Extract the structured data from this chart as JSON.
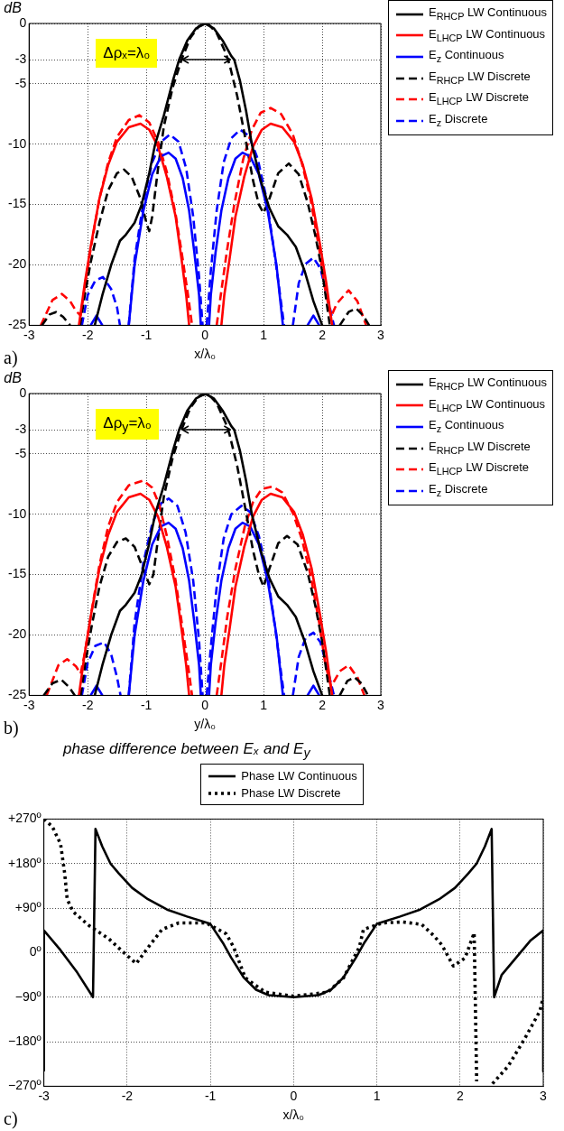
{
  "chart_data": [
    {
      "type": "line",
      "ylabel": "dB",
      "xlabel": "x/λ₀",
      "xlim": [
        -3,
        3
      ],
      "xticks": [
        -3,
        -2,
        -1,
        0,
        1,
        2,
        3
      ],
      "ylim": [
        -25,
        0
      ],
      "yticks": [
        -25,
        -20,
        -15,
        -10,
        -5,
        -3,
        0
      ],
      "grid": true,
      "legend": "top right",
      "annotations": [
        "Δρₓ=λ₀",
        "a)"
      ],
      "series": [
        {
          "name": "E$_{RHCP}$ LW Continuous",
          "color": "#000000",
          "line_style": "solid",
          "x": [
            -1.88,
            -1.75,
            -1.6,
            -1.45,
            -1.35,
            -1.2,
            -1.08,
            -0.95,
            -0.85,
            -0.7,
            -0.55,
            -0.44,
            -0.3,
            -0.15,
            0,
            0.15,
            0.3,
            0.45,
            0.5,
            0.6,
            0.7,
            0.8,
            0.95,
            1.1,
            1.25,
            1.4,
            1.55,
            1.7,
            1.85,
            2.0
          ],
          "values": [
            -25,
            -22.5,
            -20,
            -18,
            -17.5,
            -16.5,
            -15,
            -12.4,
            -10,
            -7.6,
            -4.8,
            -3,
            -1.4,
            -0.4,
            0,
            -0.4,
            -1.4,
            -2.7,
            -3,
            -4.8,
            -7.2,
            -10,
            -13,
            -15.3,
            -16.8,
            -17.5,
            -18.5,
            -20.5,
            -23,
            -25
          ]
        },
        {
          "name": "E$_{LHCP}$ LW Continuous",
          "color": "#ff0000",
          "line_style": "solid",
          "x": [
            -2.15,
            -2.05,
            -1.95,
            -1.8,
            -1.65,
            -1.5,
            -1.3,
            -1.1,
            -0.95,
            -0.8,
            -0.65,
            -0.5,
            -0.4,
            -0.32,
            -0.27,
            0,
            0.28,
            0.33,
            0.42,
            0.52,
            0.67,
            0.82,
            0.97,
            1.12,
            1.32,
            1.52,
            1.67,
            1.82,
            1.97,
            2.07,
            2.17
          ],
          "values": [
            -25,
            -21.5,
            -18.5,
            -14.5,
            -11.7,
            -9.8,
            -8.6,
            -8.3,
            -8.8,
            -10.2,
            -12.7,
            -16,
            -19.5,
            -22.5,
            -25,
            null,
            -25,
            -22.5,
            -19.5,
            -16,
            -12.7,
            -10.2,
            -8.8,
            -8.3,
            -8.6,
            -9.8,
            -11.7,
            -14.5,
            -18.5,
            -21.5,
            -25
          ]
        },
        {
          "name": "E$_{z}$ Continuous",
          "color": "#0000ff",
          "line_style": "solid",
          "x": [
            -1.95,
            -1.85,
            -1.75,
            -1.5,
            -1.3,
            -1.2,
            -1.05,
            -0.9,
            -0.75,
            -0.62,
            -0.5,
            -0.38,
            -0.27,
            -0.18,
            -0.1,
            -0.07,
            0,
            0.07,
            0.1,
            0.18,
            0.28,
            0.4,
            0.52,
            0.64,
            0.77,
            0.92,
            1.07,
            1.22,
            1.33,
            1.55,
            1.75,
            1.85,
            1.95
          ],
          "values": [
            -25,
            -24.2,
            -25,
            null,
            -25,
            -20,
            -15.5,
            -12.5,
            -11,
            -10.7,
            -11.2,
            -12.8,
            -15.5,
            -19,
            -22.5,
            -25,
            null,
            -25,
            -22.5,
            -19,
            -15.5,
            -12.8,
            -11.2,
            -10.7,
            -11,
            -12.5,
            -15.5,
            -20,
            -25,
            null,
            -25,
            -24.2,
            -25
          ]
        },
        {
          "name": "E$_{RHCP}$ LW Discrete",
          "color": "#000000",
          "line_style": "dashed",
          "x": [
            -2.78,
            -2.65,
            -2.54,
            -2.42,
            -2.3,
            -2.2,
            -2.13,
            -2.05,
            -1.95,
            -1.8,
            -1.65,
            -1.5,
            -1.38,
            -1.25,
            -1.1,
            -1.0,
            -0.95,
            -0.9,
            -0.8,
            -0.7,
            -0.55,
            -0.4,
            -0.25,
            -0.1,
            0.05,
            0.2,
            0.35,
            0.42,
            0.55,
            0.7,
            0.82,
            0.92,
            1.0,
            1.1,
            1.25,
            1.43,
            1.6,
            1.75,
            1.88,
            2.0,
            2.13,
            2.2,
            2.3,
            2.45,
            2.58,
            2.7,
            2.8
          ],
          "values": [
            -25,
            -24.1,
            -23.9,
            -24.3,
            -25,
            null,
            -25,
            -22.5,
            -19.8,
            -16.5,
            -13.8,
            -12.4,
            -12.1,
            -12.7,
            -14.5,
            -16.5,
            -17.2,
            -16,
            -12,
            -8.5,
            -5.3,
            -3,
            -1.2,
            -0.2,
            0,
            -0.8,
            -2.4,
            -3.4,
            -6,
            -9.8,
            -13,
            -15,
            -15.7,
            -14.5,
            -12.4,
            -11.6,
            -12.5,
            -14.8,
            -17.5,
            -20.5,
            -25,
            null,
            -25,
            -23.9,
            -23.6,
            -24.2,
            -25
          ]
        },
        {
          "name": "E$_{LHCP}$ LW Discrete",
          "color": "#ff0000",
          "line_style": "dashed",
          "x": [
            -2.8,
            -2.6,
            -2.44,
            -2.3,
            -2.2,
            -2.12,
            -2.05,
            -1.95,
            -1.8,
            -1.65,
            -1.5,
            -1.3,
            -1.12,
            -0.95,
            -0.8,
            -0.65,
            -0.5,
            -0.38,
            -0.28,
            -0.22,
            0,
            0.2,
            0.27,
            0.37,
            0.5,
            0.65,
            0.8,
            0.95,
            1.12,
            1.3,
            1.5,
            1.65,
            1.8,
            1.95,
            2.05,
            2.15,
            2.25,
            2.45,
            2.6,
            2.75
          ],
          "values": [
            -25,
            -22.9,
            -22.4,
            -23,
            -23.8,
            -24.2,
            -21.8,
            -18.7,
            -14.5,
            -11.5,
            -9.4,
            -8,
            -7.6,
            -8.2,
            -9.8,
            -12.3,
            -15.8,
            -19.5,
            -22.8,
            -25,
            null,
            -25,
            -22.5,
            -19,
            -15,
            -11.3,
            -8.8,
            -7.4,
            -7,
            -7.5,
            -9.2,
            -11.5,
            -14.5,
            -18.7,
            -22,
            -24.3,
            -23.2,
            -22.1,
            -23,
            -25
          ]
        },
        {
          "name": "E$_{z}$ Discrete",
          "color": "#0000ff",
          "line_style": "dashed",
          "x": [
            -2.1,
            -2.0,
            -1.87,
            -1.74,
            -1.6,
            -1.5,
            -1.45,
            -1.37,
            -1.3,
            -1.2,
            -1.05,
            -0.9,
            -0.75,
            -0.6,
            -0.45,
            -0.32,
            -0.2,
            -0.1,
            -0.04,
            0,
            0.03,
            0.1,
            0.2,
            0.32,
            0.45,
            0.6,
            0.75,
            0.9,
            1.05,
            1.2,
            1.35,
            1.42,
            1.5,
            1.6,
            1.72,
            1.85,
            1.97,
            2.08,
            2.2
          ],
          "values": [
            -25,
            -22.5,
            -21.3,
            -21,
            -22,
            -23.5,
            -25,
            null,
            -25,
            -19.5,
            -14.8,
            -11.5,
            -9.8,
            -9.2,
            -9.8,
            -12,
            -16,
            -21,
            -25,
            null,
            -25,
            -20.5,
            -15.5,
            -11.5,
            -9.5,
            -8.8,
            -9.3,
            -11.2,
            -14.5,
            -19.5,
            -25,
            null,
            -25,
            -21.5,
            -19.9,
            -19.4,
            -20.3,
            -22.5,
            -25
          ]
        }
      ]
    },
    {
      "type": "line",
      "ylabel": "dB",
      "xlabel": "y/λ₀",
      "xlim": [
        -3,
        3
      ],
      "xticks": [
        -3,
        -2,
        -1,
        0,
        1,
        2,
        3
      ],
      "ylim": [
        -25,
        0
      ],
      "yticks": [
        -25,
        -20,
        -15,
        -10,
        -5,
        -3,
        0
      ],
      "grid": true,
      "legend": "top right",
      "annotations": [
        "Δρ$_{y}$=λ₀",
        "b)"
      ],
      "series": [
        {
          "name": "E$_{RHCP}$ LW Continuous",
          "color": "#000000",
          "line_style": "solid",
          "x": [
            -1.88,
            -1.75,
            -1.6,
            -1.45,
            -1.35,
            -1.2,
            -1.08,
            -0.95,
            -0.85,
            -0.7,
            -0.55,
            -0.44,
            -0.3,
            -0.15,
            0,
            0.15,
            0.3,
            0.45,
            0.5,
            0.6,
            0.7,
            0.8,
            0.95,
            1.1,
            1.25,
            1.4,
            1.55,
            1.7,
            1.85,
            2.0
          ],
          "values": [
            -25,
            -22.5,
            -20,
            -18,
            -17.5,
            -16.5,
            -15,
            -12.4,
            -10,
            -7.6,
            -4.8,
            -3,
            -1.4,
            -0.4,
            0,
            -0.4,
            -1.4,
            -2.7,
            -3,
            -4.8,
            -7.2,
            -10,
            -13,
            -15.3,
            -16.8,
            -17.5,
            -18.5,
            -20.5,
            -23,
            -25
          ]
        },
        {
          "name": "E$_{LHCP}$ LW Continuous",
          "color": "#ff0000",
          "line_style": "solid",
          "x": [
            -2.15,
            -2.05,
            -1.95,
            -1.8,
            -1.65,
            -1.5,
            -1.3,
            -1.1,
            -0.95,
            -0.8,
            -0.65,
            -0.5,
            -0.4,
            -0.32,
            -0.27,
            0,
            0.28,
            0.33,
            0.42,
            0.52,
            0.67,
            0.82,
            0.97,
            1.12,
            1.32,
            1.52,
            1.67,
            1.82,
            1.97,
            2.07,
            2.17
          ],
          "values": [
            -25,
            -21.5,
            -18.5,
            -14.5,
            -11.7,
            -9.8,
            -8.6,
            -8.3,
            -8.8,
            -10.2,
            -12.7,
            -16,
            -19.5,
            -22.5,
            -25,
            null,
            -25,
            -22.5,
            -19.5,
            -16,
            -12.7,
            -10.2,
            -8.8,
            -8.3,
            -8.6,
            -9.8,
            -11.7,
            -14.5,
            -18.5,
            -21.5,
            -25
          ]
        },
        {
          "name": "E$_{z}$ Continuous",
          "color": "#0000ff",
          "line_style": "solid",
          "x": [
            -1.95,
            -1.85,
            -1.75,
            -1.5,
            -1.3,
            -1.2,
            -1.05,
            -0.9,
            -0.75,
            -0.62,
            -0.5,
            -0.38,
            -0.27,
            -0.18,
            -0.1,
            -0.07,
            0,
            0.07,
            0.1,
            0.18,
            0.28,
            0.4,
            0.52,
            0.64,
            0.77,
            0.92,
            1.07,
            1.22,
            1.33,
            1.55,
            1.75,
            1.85,
            1.95
          ],
          "values": [
            -25,
            -24.2,
            -25,
            null,
            -25,
            -20,
            -15.5,
            -12.5,
            -11,
            -10.7,
            -11.2,
            -12.8,
            -15.5,
            -19,
            -22.5,
            -25,
            null,
            -25,
            -22.5,
            -19,
            -15.5,
            -12.8,
            -11.2,
            -10.7,
            -11,
            -12.5,
            -15.5,
            -20,
            -25,
            null,
            -25,
            -24.2,
            -25
          ]
        },
        {
          "name": "E$_{RHCP}$ LW Discrete",
          "color": "#000000",
          "line_style": "dashed",
          "x": [
            -2.75,
            -2.6,
            -2.45,
            -2.32,
            -2.22,
            -2.17,
            -2.12,
            -2.03,
            -1.93,
            -1.8,
            -1.65,
            -1.5,
            -1.35,
            -1.2,
            -1.07,
            -0.95,
            -0.88,
            -0.8,
            -0.7,
            -0.55,
            -0.4,
            -0.25,
            -0.1,
            0.05,
            0.2,
            0.35,
            0.42,
            0.55,
            0.7,
            0.82,
            0.92,
            1.0,
            1.1,
            1.25,
            1.4,
            1.58,
            1.75,
            1.88,
            2.0,
            2.13,
            2.2,
            2.3,
            2.43,
            2.55,
            2.67,
            2.78
          ],
          "values": [
            -25,
            -24,
            -23.7,
            -24.3,
            -25,
            null,
            -25,
            -22,
            -19.2,
            -16,
            -13.5,
            -12.3,
            -12,
            -12.7,
            -14.3,
            -15.8,
            -15,
            -12,
            -8.5,
            -5.3,
            -3,
            -1.2,
            -0.2,
            0,
            -0.8,
            -2.4,
            -3.4,
            -6,
            -9.8,
            -13,
            -15,
            -16,
            -14.5,
            -12.4,
            -11.8,
            -12.5,
            -14.8,
            -17.5,
            -20.5,
            -25,
            null,
            -25,
            -23.8,
            -23.5,
            -24,
            -25
          ]
        },
        {
          "name": "E$_{LHCP}$ LW Discrete",
          "color": "#ff0000",
          "line_style": "dashed",
          "x": [
            -2.7,
            -2.5,
            -2.35,
            -2.2,
            -2.12,
            -2.05,
            -1.95,
            -1.8,
            -1.65,
            -1.5,
            -1.3,
            -1.05,
            -0.9,
            -0.78,
            -0.65,
            -0.5,
            -0.38,
            -0.28,
            -0.22,
            0,
            0.2,
            0.28,
            0.38,
            0.52,
            0.68,
            0.82,
            0.97,
            1.15,
            1.32,
            1.5,
            1.65,
            1.8,
            1.95,
            2.05,
            2.15,
            2.3,
            2.45,
            2.6,
            2.72
          ],
          "values": [
            -25,
            -22.5,
            -22,
            -22.6,
            -23.2,
            -21.5,
            -18.5,
            -14.2,
            -11,
            -9,
            -7.6,
            -7.2,
            -7.8,
            -9.2,
            -11.8,
            -15.5,
            -19.5,
            -22.8,
            -25,
            null,
            -25,
            -22.2,
            -18.5,
            -14.5,
            -11,
            -9,
            -7.9,
            -7.7,
            -8.2,
            -9.9,
            -12,
            -15,
            -19,
            -22.3,
            -24.3,
            -23,
            -22.5,
            -23.5,
            -25
          ]
        },
        {
          "name": "E$_{z}$ Discrete",
          "color": "#0000ff",
          "line_style": "dashed",
          "x": [
            -2.1,
            -2.0,
            -1.87,
            -1.72,
            -1.6,
            -1.5,
            -1.44,
            -1.37,
            -1.3,
            -1.2,
            -1.05,
            -0.9,
            -0.75,
            -0.62,
            -0.47,
            -0.33,
            -0.2,
            -0.1,
            -0.04,
            0,
            0.03,
            0.1,
            0.2,
            0.32,
            0.45,
            0.62,
            0.77,
            0.92,
            1.07,
            1.2,
            1.35,
            1.42,
            1.5,
            1.6,
            1.72,
            1.85,
            1.97,
            2.08,
            2.2
          ],
          "values": [
            -25,
            -22.3,
            -20.9,
            -20.6,
            -21.6,
            -23.5,
            -25,
            null,
            -25,
            -19,
            -14,
            -10.8,
            -9.1,
            -8.7,
            -9.3,
            -11.5,
            -15.5,
            -20.5,
            -25,
            null,
            -25,
            -21,
            -16,
            -12,
            -10,
            -9.3,
            -9.8,
            -11.8,
            -15,
            -19.5,
            -25,
            null,
            -25,
            -21.8,
            -20.2,
            -19.8,
            -20.6,
            -22.6,
            -25
          ]
        }
      ]
    },
    {
      "type": "line",
      "title": "phase difference between Eₓ and E$_{y}$",
      "xlabel": "x/λ₀",
      "xlim": [
        -3,
        3
      ],
      "xticks": [
        -3,
        -2,
        -1,
        0,
        1,
        2,
        3
      ],
      "ylim": [
        -270,
        270
      ],
      "yticks": [
        {
          "value": -270,
          "label": "−270º"
        },
        {
          "value": -180,
          "label": "−180º"
        },
        {
          "value": -90,
          "label": "−90º"
        },
        {
          "value": 0,
          "label": "0º"
        },
        {
          "value": 90,
          "label": "+90º"
        },
        {
          "value": 180,
          "label": "+180º"
        },
        {
          "value": 270,
          "label": "+270º"
        }
      ],
      "grid": true,
      "legend": "top",
      "annotations": [
        "c)"
      ],
      "series": [
        {
          "name": "Phase LW Continuous",
          "color": "#000000",
          "line_style": "solid",
          "x": [
            -3,
            -3,
            -2.8,
            -2.6,
            -2.41,
            -2.38,
            -2.3,
            -2.2,
            -2.1,
            -1.94,
            -1.75,
            -1.52,
            -1.28,
            -1,
            -0.85,
            -0.75,
            -0.6,
            -0.45,
            -0.3,
            0,
            0.3,
            0.45,
            0.6,
            0.75,
            0.85,
            1,
            1.28,
            1.52,
            1.75,
            1.94,
            2.1,
            2.2,
            2.3,
            2.38,
            2.41,
            2.5,
            2.7,
            2.85,
            3,
            3
          ],
          "values": [
            -240,
            45,
            5,
            -40,
            -90,
            250,
            215,
            180,
            160,
            131,
            108,
            87,
            73,
            58,
            20,
            -10,
            -50,
            -75,
            -86,
            -90,
            -86,
            -75,
            -50,
            -10,
            20,
            58,
            73,
            87,
            108,
            131,
            160,
            180,
            215,
            250,
            -90,
            -45,
            -5,
            25,
            45,
            -240
          ]
        },
        {
          "name": "Phase LW Discrete",
          "color": "#000000",
          "line_style": "dotted",
          "x": [
            -3,
            -2.9,
            -2.8,
            -2.75,
            -2.72,
            -2.65,
            -2.46,
            -2.22,
            -2.04,
            -1.89,
            -1.75,
            -1.58,
            -1.38,
            -1.05,
            -0.81,
            -0.72,
            -0.58,
            -0.34,
            0,
            0.41,
            0.6,
            0.79,
            0.84,
            1.07,
            1.31,
            1.54,
            1.68,
            1.78,
            1.92,
            2.06,
            2.17,
            2.2,
            2.3,
            2.39,
            2.58,
            2.77,
            2.96,
            3
          ],
          "values": [
            270,
            255,
            220,
            160,
            108,
            83,
            55,
            28,
            0,
            -22,
            10,
            47,
            60,
            60,
            38,
            11,
            -51,
            -80,
            -88,
            -80,
            -51,
            11,
            47,
            60,
            62,
            57,
            35,
            16,
            -27,
            -11,
            40,
            -260,
            null,
            -265,
            -229,
            -176,
            -118,
            -90
          ]
        }
      ]
    }
  ]
}
